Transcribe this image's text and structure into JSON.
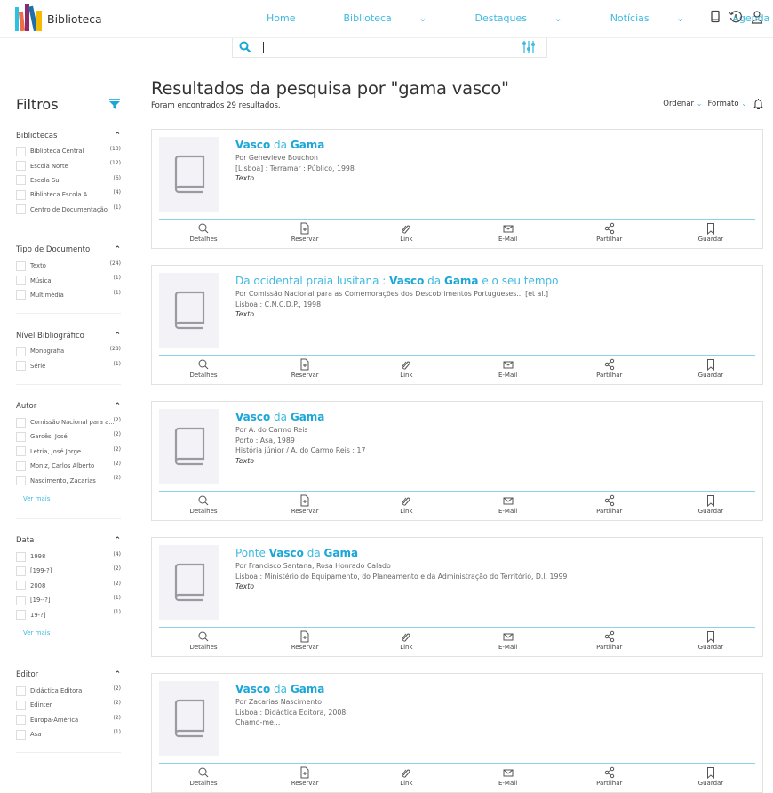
{
  "header": {
    "brand": "Biblioteca",
    "nav": [
      {
        "label": "Home",
        "dropdown": false
      },
      {
        "label": "Biblioteca",
        "dropdown": true
      },
      {
        "label": "Destaques",
        "dropdown": true
      },
      {
        "label": "Notícias",
        "dropdown": true
      },
      {
        "label": "Agenda",
        "dropdown": true
      }
    ],
    "icons": [
      "tablet-icon",
      "history-icon",
      "user-icon"
    ]
  },
  "search": {
    "value": "",
    "icons": [
      "search-icon",
      "sliders-icon"
    ]
  },
  "colors": {
    "accent": "#3fb9e0",
    "accent_strong": "#1aa7d8"
  },
  "sidebar": {
    "title": "Filtros",
    "sections": [
      {
        "title": "Bibliotecas",
        "items": [
          {
            "label": "Biblioteca Central",
            "count": "(13)"
          },
          {
            "label": "Escola Norte",
            "count": "(12)"
          },
          {
            "label": "Escola Sul",
            "count": "(6)"
          },
          {
            "label": "Biblioteca Escola A",
            "count": "(4)"
          },
          {
            "label": "Centro de Documentação",
            "count": "(1)"
          }
        ]
      },
      {
        "title": "Tipo de Documento",
        "items": [
          {
            "label": "Texto",
            "count": "(24)"
          },
          {
            "label": "Música",
            "count": "(1)"
          },
          {
            "label": "Multimédia",
            "count": "(1)"
          }
        ]
      },
      {
        "title": "Nível Bibliográfico",
        "items": [
          {
            "label": "Monografia",
            "count": "(28)"
          },
          {
            "label": "Série",
            "count": "(1)"
          }
        ]
      },
      {
        "title": "Autor",
        "more": "Ver mais",
        "items": [
          {
            "label": "Comissão Nacional para a...",
            "count": "(2)"
          },
          {
            "label": "Garcês, José",
            "count": "(2)"
          },
          {
            "label": "Letria, José Jorge",
            "count": "(2)"
          },
          {
            "label": "Moniz, Carlos Alberto",
            "count": "(2)"
          },
          {
            "label": "Nascimento, Zacarias",
            "count": "(2)"
          }
        ]
      },
      {
        "title": "Data",
        "more": "Ver mais",
        "items": [
          {
            "label": "1998",
            "count": "(4)"
          },
          {
            "label": "[199-?]",
            "count": "(2)"
          },
          {
            "label": "2008",
            "count": "(2)"
          },
          {
            "label": "[19--?]",
            "count": "(1)"
          },
          {
            "label": "19-?]",
            "count": "(1)"
          }
        ]
      },
      {
        "title": "Editor",
        "items": [
          {
            "label": "Didáctica Editora",
            "count": "(2)"
          },
          {
            "label": "Edinter",
            "count": "(2)"
          },
          {
            "label": "Europa-América",
            "count": "(2)"
          },
          {
            "label": "Asa",
            "count": "(1)"
          }
        ]
      }
    ]
  },
  "main": {
    "heading": "Resultados da pesquisa por \"gama vasco\"",
    "result_count": "Foram encontrados 29 resultados.",
    "sort_label": "Ordenar",
    "format_label": "Formato",
    "actions": [
      "Detalhes",
      "Reservar",
      "Link",
      "E-Mail",
      "Partilhar",
      "Guardar"
    ],
    "results": [
      {
        "title": [
          {
            "t": "Vasco",
            "hl": true
          },
          {
            "t": " da ",
            "hl": false
          },
          {
            "t": "Gama",
            "hl": true
          }
        ],
        "lines": [
          "Por Geneviève Bouchon",
          "[Lisboa] : Terramar : Público, 1998"
        ],
        "type": "Texto"
      },
      {
        "title": [
          {
            "t": "Da ocidental praia lusitana : ",
            "hl": false
          },
          {
            "t": "Vasco",
            "hl": true
          },
          {
            "t": " da ",
            "hl": false
          },
          {
            "t": "Gama",
            "hl": true
          },
          {
            "t": " e o seu tempo",
            "hl": false
          }
        ],
        "lines": [
          "Por Comissão Nacional para as Comemorações dos Descobrimentos Portugueses... [et al.]",
          "Lisboa : C.N.C.D.P., 1998"
        ],
        "type": "Texto"
      },
      {
        "title": [
          {
            "t": "Vasco",
            "hl": true
          },
          {
            "t": " da ",
            "hl": false
          },
          {
            "t": "Gama",
            "hl": true
          }
        ],
        "lines": [
          "Por A. do Carmo Reis",
          "Porto : Asa, 1989",
          "História júnior / A. do Carmo Reis ; 17"
        ],
        "type": "Texto"
      },
      {
        "title": [
          {
            "t": "Ponte ",
            "hl": false
          },
          {
            "t": "Vasco",
            "hl": true
          },
          {
            "t": " da ",
            "hl": false
          },
          {
            "t": "Gama",
            "hl": true
          }
        ],
        "lines": [
          "Por Francisco Santana, Rosa Honrado Calado",
          "Lisboa : Ministério do Equipamento, do Planeamento e da Administração do Território, D.l. 1999"
        ],
        "type": "Texto"
      },
      {
        "title": [
          {
            "t": "Vasco",
            "hl": true
          },
          {
            "t": " da ",
            "hl": false
          },
          {
            "t": "Gama",
            "hl": true
          }
        ],
        "lines": [
          "Por Zacarias Nascimento",
          "Lisboa : Didáctica Editora, 2008",
          "Chamo-me..."
        ],
        "type": ""
      }
    ]
  }
}
